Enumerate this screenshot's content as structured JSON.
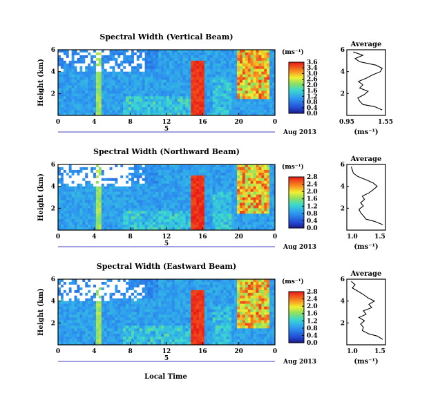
{
  "figure": {
    "xlabel": "Local Time",
    "date_label": "Aug 2013",
    "day_label": "5",
    "avg_title": "Average",
    "colorbar_unit": "(ms⁻¹)",
    "avg_xunit": "(ms⁻¹)"
  },
  "chart_data": [
    {
      "type": "heatmap",
      "title": "Spectral Width (Vertical Beam)",
      "ylabel": "Height (km)",
      "x_ticks": [
        "0",
        "4",
        "8",
        "12",
        "16",
        "20",
        "0"
      ],
      "y_ticks": [
        "6",
        "4",
        "2"
      ],
      "colorbar_ticks": [
        "3.6",
        "3.4",
        "3.0",
        "2.6",
        "2.0",
        "1.6",
        "1.2",
        "0.8",
        "0.4",
        "0.0"
      ],
      "avg_profile": {
        "title": "Average",
        "xlim": [
          0.95,
          1.55
        ],
        "x_ticks": [
          "0.95",
          "1.55"
        ],
        "y_ticks": [
          "6",
          "4",
          "2"
        ],
        "height_km": [
          0.5,
          0.8,
          1.0,
          1.3,
          1.6,
          1.9,
          2.2,
          2.5,
          2.8,
          3.1,
          3.4,
          3.7,
          4.0,
          4.3,
          4.6,
          4.9,
          5.2,
          5.5,
          5.8
        ],
        "width": [
          1.5,
          1.38,
          1.2,
          1.15,
          1.12,
          1.22,
          1.28,
          1.15,
          1.2,
          1.13,
          1.25,
          1.35,
          1.47,
          1.5,
          1.4,
          1.15,
          1.08,
          1.2,
          1.05
        ]
      }
    },
    {
      "type": "heatmap",
      "title": "Spectral Width (Northward Beam)",
      "ylabel": "Height (km)",
      "x_ticks": [
        "0",
        "4",
        "8",
        "12",
        "16",
        "20",
        "0"
      ],
      "y_ticks": [
        "6",
        "4",
        "2"
      ],
      "colorbar_ticks": [
        "2.8",
        "2.4",
        "2.0",
        "1.6",
        "1.2",
        "0.8",
        "0.4",
        "0.0"
      ],
      "avg_profile": {
        "title": "Average",
        "xlim": [
          0.9,
          1.6
        ],
        "x_ticks": [
          "1.0",
          "1.5"
        ],
        "y_ticks": [
          "6",
          "4",
          "2"
        ],
        "height_km": [
          0.5,
          0.8,
          1.0,
          1.3,
          1.6,
          1.9,
          2.2,
          2.5,
          2.8,
          3.1,
          3.4,
          3.7,
          4.0,
          4.3,
          4.6,
          4.9,
          5.2,
          5.5,
          5.8
        ],
        "width": [
          1.55,
          1.4,
          1.25,
          1.2,
          1.15,
          1.12,
          1.2,
          1.15,
          1.22,
          1.18,
          1.3,
          1.38,
          1.45,
          1.38,
          1.25,
          1.1,
          1.02,
          1.0,
          0.98
        ]
      }
    },
    {
      "type": "heatmap",
      "title": "Spectral Width (Eastward Beam)",
      "ylabel": "Height (km)",
      "x_ticks": [
        "0",
        "4",
        "8",
        "12",
        "16",
        "20",
        "0"
      ],
      "y_ticks": [
        "6",
        "4",
        "2"
      ],
      "colorbar_ticks": [
        "2.8",
        "2.4",
        "2.0",
        "1.6",
        "1.2",
        "0.8",
        "0.4",
        "0.0"
      ],
      "avg_profile": {
        "title": "Average",
        "xlim": [
          0.9,
          1.6
        ],
        "x_ticks": [
          "1.0",
          "1.5"
        ],
        "y_ticks": [
          "6",
          "4",
          "2"
        ],
        "height_km": [
          0.5,
          0.8,
          1.0,
          1.3,
          1.6,
          1.9,
          2.2,
          2.5,
          2.8,
          3.1,
          3.4,
          3.7,
          4.0,
          4.3,
          4.6,
          4.9,
          5.2,
          5.5,
          5.8
        ],
        "width": [
          1.55,
          1.45,
          1.3,
          1.18,
          1.2,
          1.15,
          1.22,
          1.12,
          1.25,
          1.2,
          1.35,
          1.3,
          1.4,
          1.28,
          1.2,
          1.1,
          1.0,
          1.05,
          0.98
        ]
      }
    }
  ]
}
